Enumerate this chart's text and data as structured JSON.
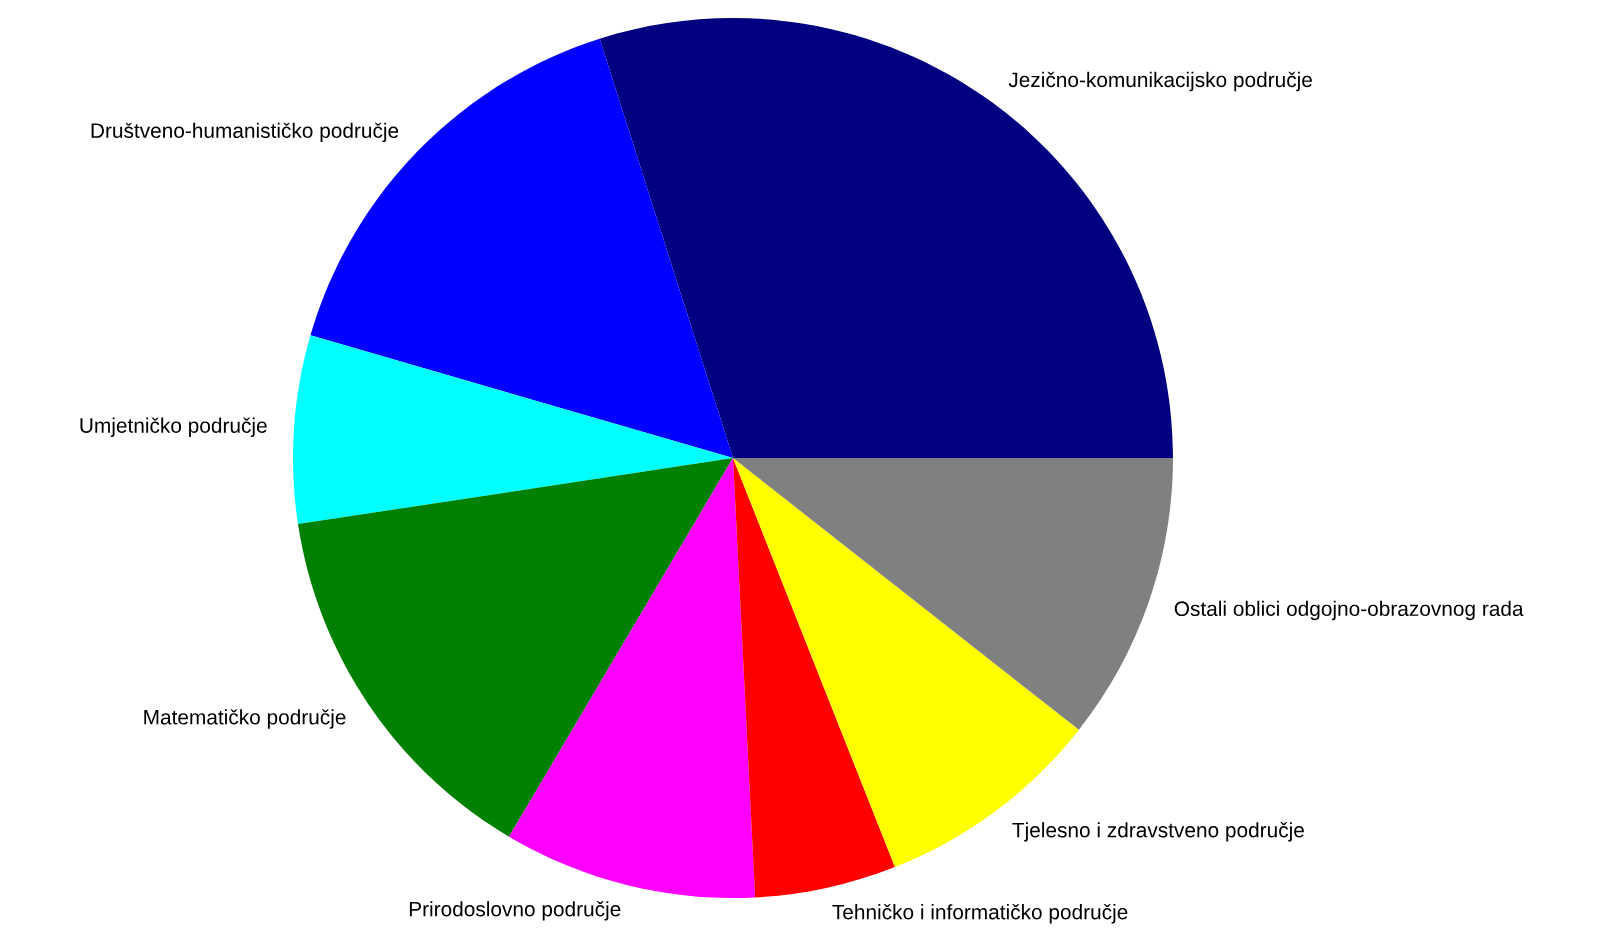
{
  "chart_data": {
    "type": "pie",
    "categories": [
      "Jezično-komunikacijsko područje",
      "Društveno-humanističko područje",
      "Umjetničko područje",
      "Matematičko područje",
      "Prirodoslovno područje",
      "Tehničko i informatičko područje",
      "Tjelesno i zdravstveno područje",
      "Ostali oblici odgojno-obrazovnog rada"
    ],
    "values": [
      29.9,
      15.6,
      6.9,
      14.1,
      9.3,
      5.2,
      8.4,
      10.6
    ],
    "colors": [
      "#000080",
      "#0000ff",
      "#00ffff",
      "#008000",
      "#ff00ff",
      "#ff0000",
      "#ffff00",
      "#808080"
    ],
    "legend": false
  }
}
